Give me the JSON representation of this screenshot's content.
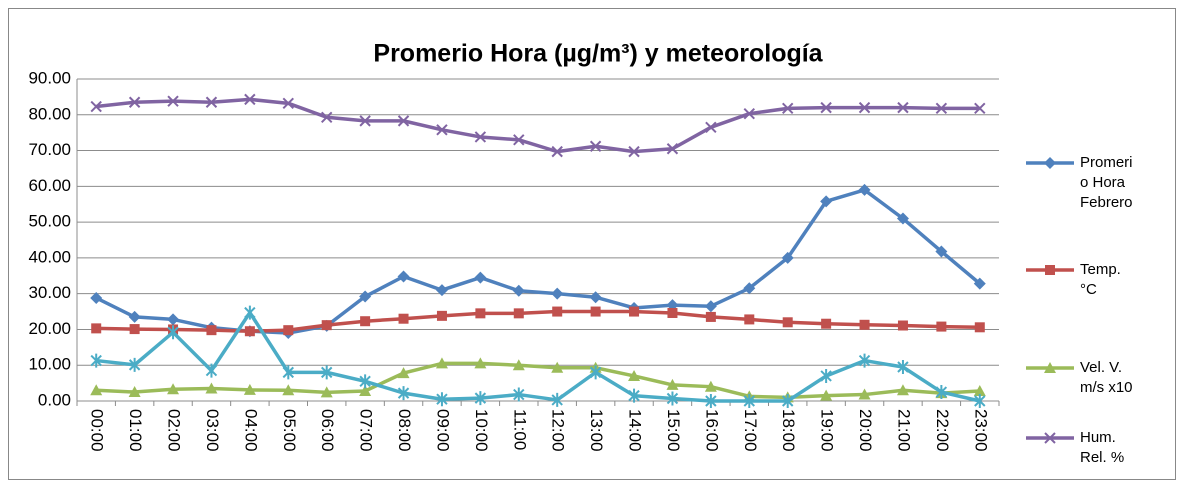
{
  "chart_data": {
    "type": "line",
    "title": "Promerio Hora  (µg/m³) y meteorología",
    "categories": [
      "00:00",
      "01:00",
      "02:00",
      "03:00",
      "04:00",
      "05:00",
      "06:00",
      "07:00",
      "08:00",
      "09:00",
      "10:00",
      "11:00",
      "12:00",
      "13:00",
      "14:00",
      "15:00",
      "16:00",
      "17:00",
      "18:00",
      "19:00",
      "20:00",
      "21:00",
      "22:00",
      "23:00"
    ],
    "series": [
      {
        "name": "Promerio Hora Febrero",
        "color": "#4f81bd",
        "marker": "diamond",
        "values": [
          28.8,
          23.5,
          22.8,
          20.5,
          19.5,
          19.0,
          21.0,
          29.2,
          34.8,
          31.0,
          34.5,
          30.8,
          30.0,
          29.0,
          26.0,
          26.8,
          26.5,
          31.5,
          40.0,
          55.8,
          59.0,
          51.0,
          41.8,
          32.8
        ]
      },
      {
        "name": "Temp. °C",
        "color": "#c0504d",
        "marker": "square",
        "values": [
          20.3,
          20.1,
          20.0,
          19.8,
          19.5,
          19.8,
          21.2,
          22.3,
          23.0,
          23.8,
          24.5,
          24.5,
          25.0,
          25.0,
          25.0,
          24.6,
          23.5,
          22.8,
          22.0,
          21.6,
          21.3,
          21.1,
          20.8,
          20.6
        ]
      },
      {
        "name": "Vel. V. m/s x10",
        "color": "#9bbb59",
        "marker": "triangle",
        "values": [
          3.0,
          2.5,
          3.3,
          3.5,
          3.1,
          3.0,
          2.4,
          2.8,
          7.8,
          10.5,
          10.5,
          10.0,
          9.3,
          9.3,
          7.0,
          4.5,
          4.0,
          1.3,
          1.0,
          1.5,
          1.8,
          3.0,
          2.2,
          2.8
        ]
      },
      {
        "name": "Hum. Rel. %",
        "color": "#8064a2",
        "marker": "x",
        "values": [
          82.3,
          83.5,
          83.8,
          83.5,
          84.3,
          83.2,
          79.3,
          78.3,
          78.3,
          75.8,
          73.8,
          73.0,
          69.7,
          71.2,
          69.7,
          70.5,
          76.5,
          80.3,
          81.8,
          82.0,
          82.0,
          82.0,
          81.8,
          81.8
        ]
      },
      {
        "color": "#4bacc6",
        "marker": "star",
        "values": [
          11.3,
          10.1,
          19.2,
          8.5,
          24.7,
          8.0,
          8.0,
          5.5,
          2.2,
          0.5,
          0.8,
          1.8,
          0.3,
          8.0,
          1.5,
          0.7,
          0.0,
          0.0,
          0.0,
          7.0,
          11.3,
          9.5,
          2.5,
          0.0
        ]
      }
    ],
    "ylim": [
      0,
      90
    ],
    "yticks": [
      {
        "value": 0,
        "label": "0.00"
      },
      {
        "value": 10,
        "label": "10.00"
      },
      {
        "value": 20,
        "label": "20.00"
      },
      {
        "value": 30,
        "label": "30.00"
      },
      {
        "value": 40,
        "label": "40.00"
      },
      {
        "value": 50,
        "label": "50.00"
      },
      {
        "value": 60,
        "label": "60.00"
      },
      {
        "value": 70,
        "label": "70.00"
      },
      {
        "value": 80,
        "label": "80.00"
      },
      {
        "value": 90,
        "label": "90.00"
      }
    ],
    "grid": true,
    "legend": "right"
  }
}
